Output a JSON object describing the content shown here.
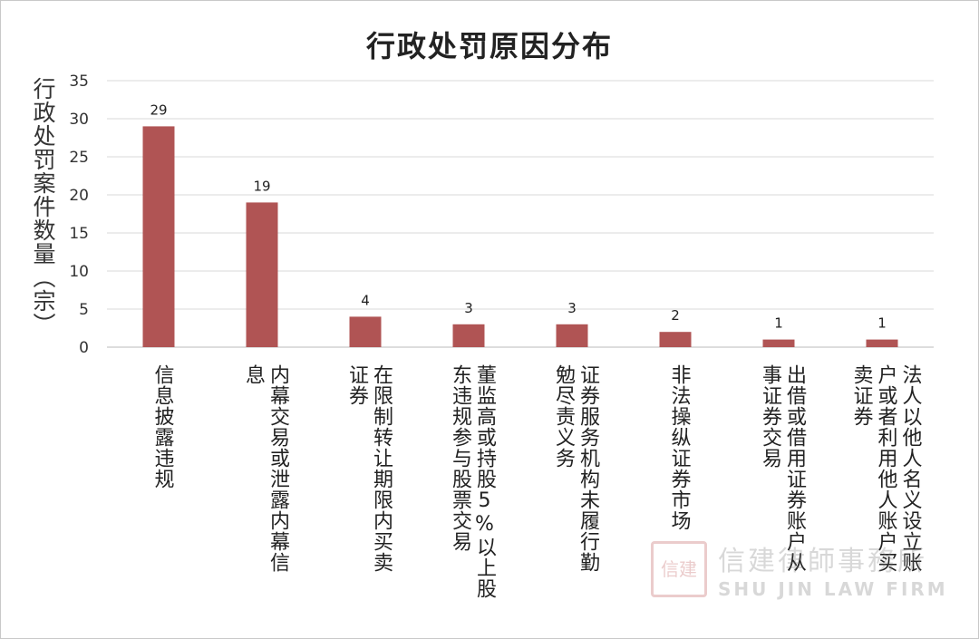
{
  "watermark": {
    "seal_text": "信建",
    "name_cn": "信建律師事務所",
    "name_en": "SHU JIN LAW FIRM"
  },
  "chart_data": {
    "type": "bar",
    "title": "行政处罚原因分布",
    "ylabel": "行政处罚案件数量（宗）",
    "xlabel": "",
    "ylim": [
      0,
      35
    ],
    "yticks": [
      0,
      5,
      10,
      15,
      20,
      25,
      30,
      35
    ],
    "grid": true,
    "bar_color": "#b05454",
    "categories": [
      "信息披露违规",
      "内幕交易或泄露内幕信息",
      "在限制转让期限内买卖证券",
      "董监高或持股5%以上股东违规参与股票交易",
      "证券服务机构未履行勤勉尽责义务",
      "非法操纵证券市场",
      "出借或借用证券账户从事证券交易",
      "法人以他人名义设立账户或者利用他人账户买卖证券"
    ],
    "category_lines": [
      [
        "信息披露违规"
      ],
      [
        "内幕交易或泄露内幕信",
        "息"
      ],
      [
        "在限制转让期限内买卖",
        "证券"
      ],
      [
        "董监高或持股5%以上股",
        "东违规参与股票交易"
      ],
      [
        "证券服务机构未履行勤",
        "勉尽责义务"
      ],
      [
        "非法操纵证券市场"
      ],
      [
        "出借或借用证券账户从",
        "事证券交易"
      ],
      [
        "法人以他人名义设立账",
        "户或者利用他人账户买",
        "卖证券"
      ]
    ],
    "values": [
      29,
      19,
      4,
      3,
      3,
      2,
      1,
      1
    ]
  }
}
